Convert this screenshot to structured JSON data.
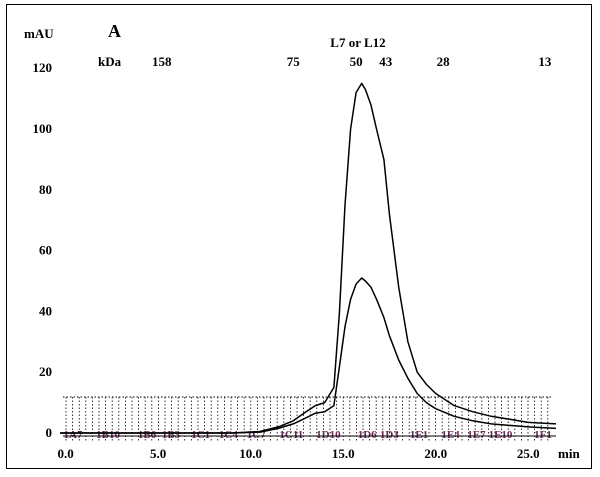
{
  "chart_data": {
    "type": "line",
    "panel_label": "A",
    "ylabel": "mAU",
    "xlabel": "min",
    "xlim": [
      -0.3,
      26.5
    ],
    "ylim": [
      0,
      125
    ],
    "x_ticks": [
      "0.0",
      "5.0",
      "10.0",
      "15.0",
      "20.0",
      "25.0"
    ],
    "x_tick_values": [
      0,
      5,
      10,
      15,
      20,
      25
    ],
    "y_ticks": [
      "0",
      "20",
      "40",
      "60",
      "80",
      "100",
      "120"
    ],
    "y_tick_values": [
      0,
      20,
      40,
      60,
      80,
      100,
      120
    ],
    "mw_unit": "kDa",
    "mw_markers": [
      {
        "label": "158",
        "x": 5.2
      },
      {
        "label": "75",
        "x": 12.3
      },
      {
        "label": "50",
        "x": 15.7
      },
      {
        "label": "43",
        "x": 17.3
      },
      {
        "label": "28",
        "x": 20.4
      },
      {
        "label": "13",
        "x": 25.9
      }
    ],
    "annotation": {
      "label": "L7 or L12",
      "x": 15.8
    },
    "fractions": [
      "1A7",
      "1B10",
      "1B6",
      "1B3",
      "1C1",
      "1C4",
      "1C7",
      "1C11",
      "1D10",
      "1D6",
      "1D3",
      "1E1",
      "1E4",
      "1E7",
      "1E10",
      "1F1"
    ],
    "fraction_x": [
      0.4,
      2.3,
      4.4,
      5.7,
      7.3,
      8.8,
      10.3,
      12.2,
      14.2,
      16.3,
      17.5,
      19.1,
      20.8,
      22.2,
      23.5,
      25.8
    ],
    "series": [
      {
        "x": [
          -0.3,
          5,
          9,
          10.5,
          11.5,
          12.3,
          13,
          13.5,
          14,
          14.5,
          14.8,
          15.1,
          15.4,
          15.7,
          16,
          16.2,
          16.5,
          16.8,
          17.2,
          17.5,
          18,
          18.5,
          19,
          19.5,
          20,
          21,
          22,
          23,
          24,
          25,
          26.5
        ],
        "y": [
          0,
          0,
          0,
          0.5,
          2,
          4,
          7,
          9,
          10,
          15,
          40,
          75,
          100,
          112,
          115,
          113,
          108,
          100,
          90,
          72,
          48,
          30,
          20,
          16,
          13,
          9,
          7,
          5.5,
          4.5,
          3.5,
          3
        ]
      },
      {
        "x": [
          -0.3,
          5,
          9,
          10.5,
          11.5,
          12.3,
          13,
          13.5,
          14,
          14.5,
          14.8,
          15.1,
          15.4,
          15.7,
          16,
          16.2,
          16.5,
          16.8,
          17.2,
          17.5,
          18,
          18.5,
          19,
          19.5,
          20,
          21,
          22,
          23,
          24,
          25,
          26.5
        ],
        "y": [
          0,
          0,
          0,
          0.3,
          1.5,
          3,
          5,
          6.5,
          7,
          9,
          22,
          35,
          44,
          49,
          51,
          50,
          48,
          44,
          38,
          32,
          24,
          18,
          13,
          10,
          8,
          5.5,
          4,
          3,
          2.5,
          2,
          1.5
        ]
      }
    ]
  }
}
